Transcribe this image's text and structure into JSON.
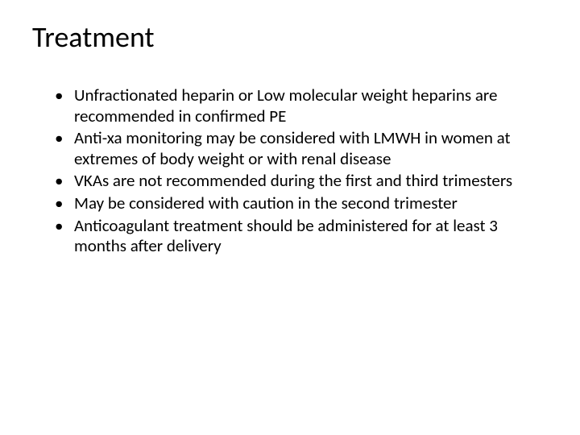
{
  "slide": {
    "title": "Treatment",
    "title_fontsize": 36,
    "title_color": "#000000",
    "background_color": "#ffffff",
    "bullet_fontsize": 21,
    "bullet_color": "#000000",
    "bullet_marker": "•",
    "bullets": [
      "Unfractionated heparin  or Low molecular weight heparins are recommended in confirmed PE",
      "Anti-xa monitoring may be considered  with LMWH in women at extremes of body weight or with renal disease",
      "VKAs are not recommended during the first and third trimesters",
      "May be considered with caution in the second trimester",
      "Anticoagulant treatment should be administered for at least 3 months after delivery"
    ]
  }
}
